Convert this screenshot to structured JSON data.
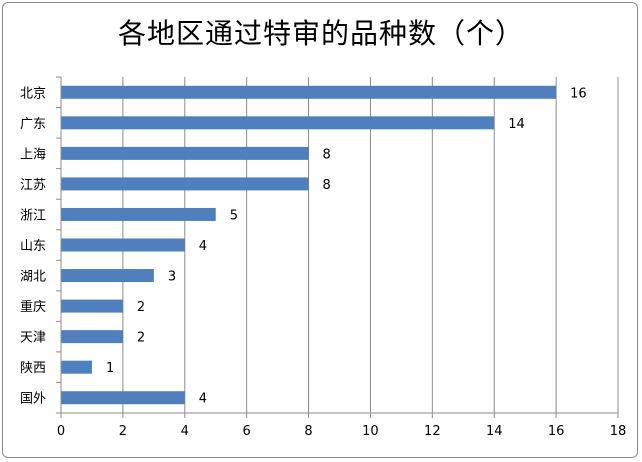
{
  "chart_data": {
    "type": "bar",
    "orientation": "horizontal",
    "title": "各地区通过特审的品种数（个）",
    "categories": [
      "北京",
      "广东",
      "上海",
      "江苏",
      "浙江",
      "山东",
      "湖北",
      "重庆",
      "天津",
      "陕西",
      "国外"
    ],
    "values": [
      16,
      14,
      8,
      8,
      5,
      4,
      3,
      2,
      2,
      1,
      4
    ],
    "xlim": [
      0,
      18
    ],
    "xticks": [
      0,
      2,
      4,
      6,
      8,
      10,
      12,
      14,
      16,
      18
    ],
    "grid": true,
    "legend": "none",
    "bar_color": "#4f7fbd",
    "grid_color": "#8c8c8c"
  }
}
